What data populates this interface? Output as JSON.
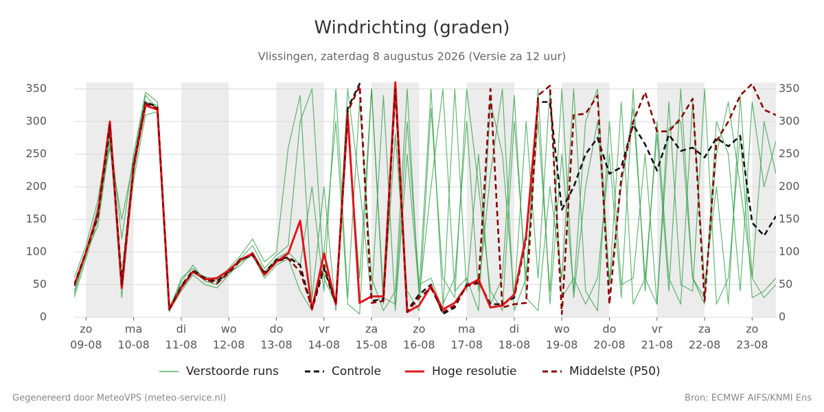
{
  "chart_data": {
    "type": "line",
    "title": "Windrichting (graden)",
    "subtitle": "Vlissingen, zaterdag  8 augustus 2026 (Versie za 12 uur)",
    "footer_left": "Gegenereerd door MeteoVPS (meteo-service.nl)",
    "footer_right": "Bron: ECMWF AIFS/KNMI Ens",
    "x": [
      -0.25,
      0,
      0.25,
      0.5,
      0.75,
      1,
      1.25,
      1.5,
      1.75,
      2,
      2.25,
      2.5,
      2.75,
      3,
      3.25,
      3.5,
      3.75,
      4,
      4.25,
      4.5,
      4.75,
      5,
      5.25,
      5.5,
      5.75,
      6,
      6.25,
      6.5,
      6.75,
      7,
      7.25,
      7.5,
      7.75,
      8,
      8.25,
      8.5,
      8.75,
      9,
      9.25,
      9.5,
      9.75,
      10,
      10.25,
      10.5,
      10.75,
      11,
      11.25,
      11.5,
      11.75,
      12,
      12.25,
      12.5,
      12.75,
      13,
      13.25,
      13.5,
      13.75,
      14,
      14.25,
      14.5
    ],
    "xlim": [
      -0.25,
      14.5
    ],
    "xticks": [
      {
        "value": 0,
        "label": "zo",
        "date": "09-08"
      },
      {
        "value": 1,
        "label": "ma",
        "date": "10-08"
      },
      {
        "value": 2,
        "label": "di",
        "date": "11-08"
      },
      {
        "value": 3,
        "label": "wo",
        "date": "12-08"
      },
      {
        "value": 4,
        "label": "do",
        "date": "13-08"
      },
      {
        "value": 5,
        "label": "vr",
        "date": "14-08"
      },
      {
        "value": 6,
        "label": "za",
        "date": "15-08"
      },
      {
        "value": 7,
        "label": "zo",
        "date": "16-08"
      },
      {
        "value": 8,
        "label": "ma",
        "date": "17-08"
      },
      {
        "value": 9,
        "label": "di",
        "date": "18-08"
      },
      {
        "value": 10,
        "label": "wo",
        "date": "19-08"
      },
      {
        "value": 11,
        "label": "do",
        "date": "20-08"
      },
      {
        "value": 12,
        "label": "vr",
        "date": "21-08"
      },
      {
        "value": 13,
        "label": "za",
        "date": "22-08"
      },
      {
        "value": 14,
        "label": "zo",
        "date": "23-08"
      }
    ],
    "ylim": [
      0,
      360
    ],
    "yticks": [
      0,
      50,
      100,
      150,
      200,
      250,
      300,
      350
    ],
    "grid": true,
    "perturbed": {
      "name": "Verstoorde runs",
      "color": "#2e9e44",
      "runs": [
        [
          40,
          95,
          170,
          260,
          150,
          240,
          340,
          320,
          15,
          55,
          80,
          55,
          50,
          70,
          90,
          110,
          75,
          95,
          110,
          300,
          350,
          60,
          20,
          350,
          200,
          30,
          340,
          10,
          250,
          40,
          350,
          20,
          60,
          300,
          40,
          220,
          350,
          10,
          60,
          300,
          40,
          350,
          30,
          200,
          300,
          50,
          330,
          20,
          60,
          280,
          40,
          350,
          60,
          20,
          300,
          250,
          40,
          330,
          200,
          270
        ],
        [
          30,
          90,
          150,
          280,
          30,
          220,
          330,
          325,
          10,
          40,
          65,
          50,
          45,
          65,
          85,
          95,
          60,
          80,
          90,
          40,
          10,
          100,
          300,
          20,
          5,
          350,
          30,
          20,
          300,
          50,
          60,
          10,
          350,
          40,
          250,
          20,
          60,
          340,
          30,
          10,
          200,
          60,
          350,
          40,
          10,
          300,
          50,
          60,
          250,
          20,
          330,
          50,
          40,
          350,
          20,
          60,
          280,
          30,
          40,
          60
        ],
        [
          60,
          110,
          180,
          290,
          120,
          250,
          345,
          330,
          8,
          60,
          75,
          60,
          55,
          75,
          95,
          120,
          85,
          100,
          260,
          340,
          30,
          200,
          10,
          300,
          60,
          350,
          20,
          280,
          40,
          10,
          320,
          60,
          30,
          350,
          200,
          40,
          10,
          300,
          60,
          350,
          20,
          250,
          40,
          300,
          350,
          50,
          200,
          320,
          60,
          20,
          290,
          300,
          60,
          30,
          250,
          330,
          200,
          60,
          300,
          220
        ],
        [
          35,
          100,
          140,
          270,
          60,
          210,
          310,
          315,
          14,
          50,
          68,
          62,
          58,
          68,
          80,
          100,
          70,
          90,
          100,
          80,
          200,
          40,
          350,
          30,
          330,
          60,
          10,
          40,
          350,
          30,
          200,
          350,
          40,
          60,
          10,
          330,
          250,
          30,
          300,
          60,
          350,
          30,
          60,
          20,
          60,
          250,
          30,
          350,
          40,
          300,
          60,
          20,
          330,
          50,
          200,
          20,
          340,
          60,
          30,
          50
        ]
      ]
    },
    "series": [
      {
        "name": "Controle",
        "color": "#111111",
        "dash": true,
        "values": [
          50,
          100,
          155,
          290,
          55,
          235,
          330,
          322,
          12,
          48,
          72,
          60,
          55,
          70,
          90,
          95,
          68,
          88,
          92,
          80,
          12,
          75,
          20,
          320,
          358,
          25,
          28,
          355,
          10,
          35,
          50,
          5,
          15,
          50,
          55,
          20,
          20,
          30,
          120,
          330,
          330,
          165,
          200,
          250,
          275,
          220,
          230,
          295,
          265,
          225,
          280,
          255,
          260,
          245,
          275,
          262,
          278,
          145,
          125,
          155
        ]
      },
      {
        "name": "Hoge resolutie",
        "color": "#e0151b",
        "dash": false,
        "values": [
          48,
          100,
          160,
          300,
          45,
          230,
          325,
          318,
          12,
          45,
          70,
          58,
          60,
          72,
          88,
          98,
          65,
          85,
          98,
          148,
          12,
          98,
          20,
          310,
          22,
          32,
          32,
          360,
          8,
          18,
          48,
          12,
          22,
          48,
          58,
          15,
          18,
          35,
          125,
          330,
          null,
          null,
          null,
          null,
          null,
          null,
          null,
          null,
          null,
          null,
          null,
          null,
          null,
          null,
          null,
          null,
          null,
          null,
          null,
          null
        ]
      },
      {
        "name": "Middelste (P50)",
        "color": "#8b0000",
        "dash": true,
        "values": [
          48,
          100,
          158,
          295,
          50,
          232,
          328,
          320,
          12,
          46,
          70,
          58,
          52,
          68,
          88,
          96,
          66,
          86,
          90,
          70,
          15,
          80,
          20,
          315,
          355,
          22,
          25,
          350,
          8,
          30,
          45,
          8,
          18,
          48,
          52,
          350,
          15,
          20,
          22,
          340,
          355,
          5,
          310,
          312,
          340,
          20,
          215,
          300,
          345,
          285,
          285,
          305,
          335,
          25,
          270,
          300,
          340,
          358,
          318,
          310
        ]
      }
    ]
  }
}
